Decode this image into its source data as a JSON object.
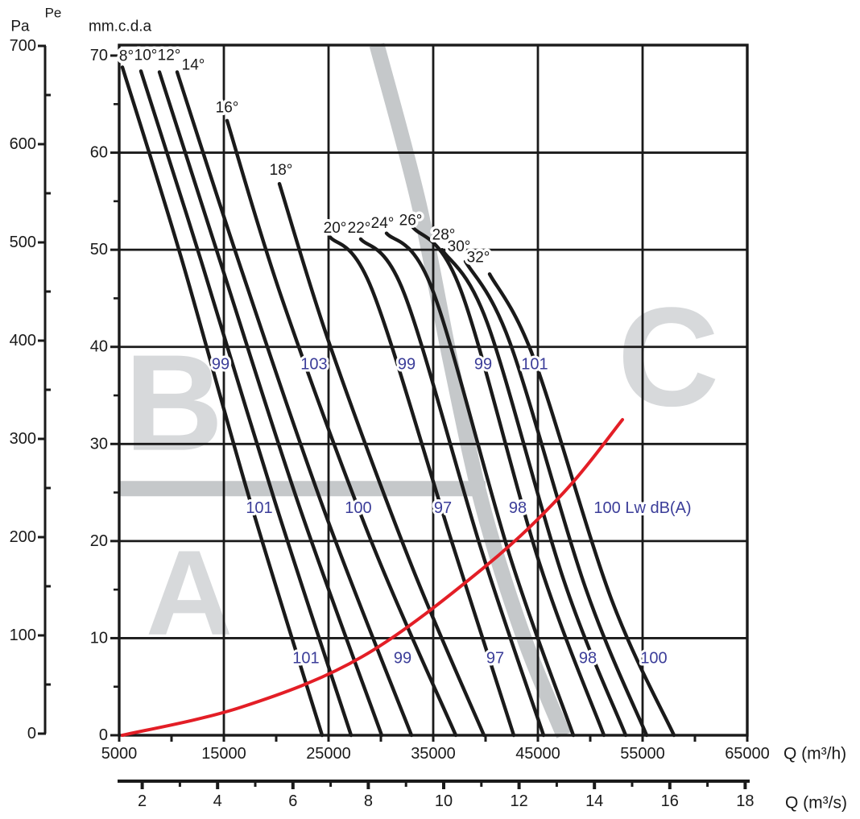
{
  "chart_data": {
    "type": "line",
    "description": "Axial fan performance chart: static pressure vs volumetric flow for blade pitch angles 8e-32e with sound power labels and selection zones",
    "y_axis_pa": {
      "title": "Pe",
      "unit": "Pa",
      "tick_labels": [
        700,
        600,
        500,
        400,
        300,
        200,
        100,
        0
      ],
      "minor_step": 50,
      "range": [
        0,
        700
      ]
    },
    "y_axis_mm": {
      "unit": "mm.c.d.a",
      "tick_labels": [
        70,
        60,
        50,
        40,
        30,
        20,
        10,
        0
      ],
      "minor_step": 5,
      "range": [
        0,
        70
      ]
    },
    "x_axis_m3h": {
      "unit": "Q (m³/h)",
      "tick_labels": [
        5000,
        15000,
        25000,
        35000,
        45000,
        55000,
        65000
      ],
      "minor_step": 5000,
      "range": [
        5000,
        65000
      ]
    },
    "x_axis_m3s": {
      "unit": "Q (m³/s)",
      "tick_labels": [
        2,
        4,
        6,
        8,
        10,
        12,
        14,
        16,
        18
      ],
      "minor_step": 1,
      "range": [
        1.39,
        18.06
      ]
    },
    "pitch_curves": [
      {
        "angle": "8°",
        "label_q": 5692,
        "label_mm": 69.9,
        "points": [
          [
            5308,
            68.8
          ],
          [
            10923,
            49.2
          ],
          [
            17462,
            24.3
          ],
          [
            24385,
            0
          ]
        ]
      },
      {
        "angle": "10°",
        "label_q": 7538,
        "label_mm": 70.0,
        "points": [
          [
            7077,
            68.4
          ],
          [
            12846,
            48.8
          ],
          [
            19923,
            23.9
          ],
          [
            27154,
            0
          ]
        ]
      },
      {
        "angle": "12°",
        "label_q": 9769,
        "label_mm": 70.0,
        "points": [
          [
            8846,
            68.3
          ],
          [
            14769,
            48.4
          ],
          [
            22231,
            23.5
          ],
          [
            30077,
            0
          ]
        ]
      },
      {
        "angle": "14°",
        "label_q": 12077,
        "label_mm": 69.0,
        "points": [
          [
            10538,
            68.3
          ],
          [
            16692,
            47.9
          ],
          [
            24769,
            22.6
          ],
          [
            32923,
            0
          ]
        ]
      },
      {
        "angle": "16°",
        "label_q": 15308,
        "label_mm": 64.6,
        "points": [
          [
            15308,
            63.3
          ],
          [
            20538,
            45.0
          ],
          [
            29000,
            20.2
          ],
          [
            37154,
            0
          ]
        ]
      },
      {
        "angle": "18°",
        "label_q": 20462,
        "label_mm": 58.2,
        "points": [
          [
            20308,
            56.8
          ],
          [
            25154,
            40.1
          ],
          [
            32846,
            17.7
          ],
          [
            39846,
            0
          ]
        ]
      },
      {
        "angle": "20°",
        "label_q": 25615,
        "label_mm": 52.2,
        "points": [
          [
            25154,
            51.3
          ],
          [
            29154,
            45.9
          ],
          [
            36692,
            20.2
          ],
          [
            42692,
            0
          ]
        ]
      },
      {
        "angle": "22°",
        "label_q": 27923,
        "label_mm": 52.2,
        "points": [
          [
            28077,
            51.1
          ],
          [
            32231,
            45.5
          ],
          [
            39538,
            19.3
          ],
          [
            45538,
            0
          ]
        ]
      },
      {
        "angle": "24°",
        "label_q": 30154,
        "label_mm": 52.7,
        "points": [
          [
            30538,
            51.7
          ],
          [
            34923,
            45.9
          ],
          [
            42308,
            18.5
          ],
          [
            48385,
            0
          ]
        ]
      },
      {
        "angle": "26°",
        "label_q": 32846,
        "label_mm": 53.0,
        "points": [
          [
            33077,
            52.3
          ],
          [
            37615,
            45.9
          ],
          [
            45154,
            17.7
          ],
          [
            51308,
            0
          ]
        ]
      },
      {
        "angle": "28°",
        "label_q": 36000,
        "label_mm": 51.5,
        "points": [
          [
            35846,
            50.0
          ],
          [
            40154,
            42.5
          ],
          [
            47462,
            16.0
          ],
          [
            53385,
            0
          ]
        ]
      },
      {
        "angle": "30°",
        "label_q": 37462,
        "label_mm": 50.3,
        "points": [
          [
            38077,
            48.8
          ],
          [
            42308,
            40.5
          ],
          [
            49538,
            15.2
          ],
          [
            55385,
            0
          ]
        ]
      },
      {
        "angle": "32°",
        "label_q": 39308,
        "label_mm": 49.2,
        "points": [
          [
            40385,
            47.5
          ],
          [
            44615,
            38.8
          ],
          [
            51923,
            14.3
          ],
          [
            58000,
            0
          ]
        ]
      }
    ],
    "noise_labels": [
      {
        "text": "99",
        "q": 14692,
        "mm": 38.2
      },
      {
        "text": "103",
        "q": 23615,
        "mm": 38.2
      },
      {
        "text": "99",
        "q": 32462,
        "mm": 38.2
      },
      {
        "text": "99",
        "q": 39769,
        "mm": 38.2
      },
      {
        "text": "101",
        "q": 44692,
        "mm": 38.2
      },
      {
        "text": "101",
        "q": 18385,
        "mm": 23.4
      },
      {
        "text": "100",
        "q": 27846,
        "mm": 23.4
      },
      {
        "text": "97",
        "q": 35923,
        "mm": 23.4
      },
      {
        "text": "98",
        "q": 43077,
        "mm": 23.4
      },
      {
        "text": "100 Lw dB(A)",
        "q": 55000,
        "mm": 23.4
      },
      {
        "text": "101",
        "q": 22846,
        "mm": 7.9
      },
      {
        "text": "99",
        "q": 32077,
        "mm": 7.9
      },
      {
        "text": "97",
        "q": 40923,
        "mm": 7.9
      },
      {
        "text": "98",
        "q": 49769,
        "mm": 7.9
      },
      {
        "text": "100",
        "q": 56077,
        "mm": 7.9
      }
    ],
    "zones": [
      {
        "letter": "B",
        "q": 10231,
        "mm": 34.2,
        "size": 170
      },
      {
        "letter": "A",
        "q": 11692,
        "mm": 14.7,
        "size": 150
      },
      {
        "letter": "C",
        "q": 57462,
        "mm": 38.9,
        "size": 175
      }
    ],
    "guide_bands": {
      "diagonal_points": [
        [
          29615,
          71.1
        ],
        [
          33615,
          54.8
        ],
        [
          36692,
          38.3
        ],
        [
          39769,
          23.4
        ],
        [
          43615,
          10.2
        ],
        [
          47462,
          0
        ]
      ],
      "horizontal": {
        "mm": 25.4,
        "q_from": 5100,
        "q_to": 40000
      }
    },
    "red_min_curve": {
      "points": [
        [
          5308,
          0
        ],
        [
          16692,
          2.9
        ],
        [
          28231,
          8.1
        ],
        [
          39769,
          17.2
        ],
        [
          47462,
          25.0
        ],
        [
          53077,
          32.5
        ]
      ]
    },
    "colors": {
      "curve": "#1a1a1a",
      "grid": "#1a1a1a",
      "noise_text": "#3b3d99",
      "red_curve": "#e31e26",
      "zone_letter": "#d7d9db",
      "guide_band": "#c5c8ca"
    }
  }
}
